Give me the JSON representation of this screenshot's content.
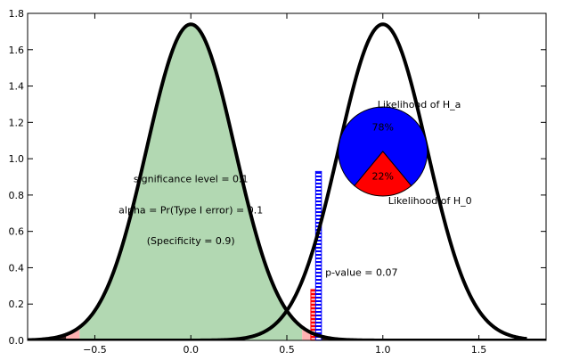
{
  "chart_data": {
    "type": "line",
    "xlim": [
      -0.85,
      1.85
    ],
    "ylim": [
      0,
      1.8
    ],
    "x_ticks": [
      -0.5,
      0.0,
      0.5,
      1.0,
      1.5
    ],
    "x_tick_labels": [
      "−0.5",
      "0.0",
      "0.5",
      "1.0",
      "1.5"
    ],
    "y_ticks": [
      0.0,
      0.2,
      0.4,
      0.6,
      0.8,
      1.0,
      1.2,
      1.4,
      1.6,
      1.8
    ],
    "y_tick_labels": [
      "0.0",
      "0.2",
      "0.4",
      "0.6",
      "0.8",
      "1.0",
      "1.2",
      "1.4",
      "1.6",
      "1.8"
    ],
    "grid": false,
    "series": [
      {
        "mean": 0.0,
        "std": 0.23,
        "peak": 1.74,
        "x_range": [
          -0.85,
          1.85
        ],
        "color": "#000000"
      },
      {
        "mean": 1.0,
        "std": 0.23,
        "peak": 1.74,
        "x_range": [
          -0.72,
          1.75
        ],
        "color": "#000000"
      }
    ],
    "regions": [
      {
        "kind": "fill",
        "x_range": [
          -0.58,
          0.58
        ],
        "color": "#b2d8b2"
      },
      {
        "kind": "fill",
        "x_range": [
          -0.65,
          -0.58
        ],
        "color": "#ffb2b2"
      },
      {
        "kind": "fill",
        "x_range": [
          0.58,
          0.63
        ],
        "color": "#ffb2b2"
      },
      {
        "kind": "fill",
        "x_range": [
          -0.85,
          -0.65
        ],
        "color": "#3b2220"
      },
      {
        "kind": "fill",
        "x_range": [
          0.63,
          1.85
        ],
        "color": "#3b2220"
      },
      {
        "kind": "hatch",
        "x_range": [
          0.625,
          0.655
        ],
        "y_top": 0.28,
        "color": "#ff0000"
      },
      {
        "kind": "hatch",
        "x_range": [
          0.65,
          0.68
        ],
        "y_top": 0.93,
        "color": "#0000ff"
      }
    ],
    "annotations": [
      {
        "text": "significance level = 0.1",
        "x": 0.0,
        "y": 0.87
      },
      {
        "text": "alpha = Pr(Type I error) = 0.1",
        "x": 0.0,
        "y": 0.7
      },
      {
        "text": "(Specificity = 0.9)",
        "x": 0.0,
        "y": 0.53
      },
      {
        "text": "p-value = 0.07",
        "x": 0.7,
        "y": 0.355
      }
    ],
    "pie": {
      "center": [
        1.0,
        1.04
      ],
      "slices": [
        {
          "name": "Likelihood of H_a",
          "value": 78,
          "label": "78%",
          "color": "#0000ff"
        },
        {
          "name": "Likelihood of H_0",
          "value": 22,
          "label": "22%",
          "color": "#ff0000"
        }
      ]
    }
  }
}
